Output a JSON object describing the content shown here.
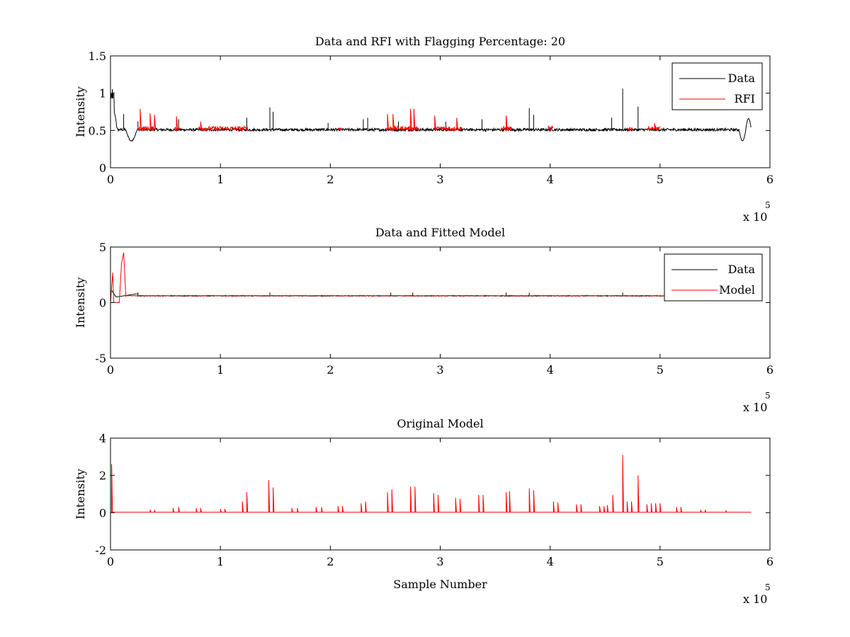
{
  "figure": {
    "xlabel": "Sample Number",
    "exponent_base": "x 10",
    "exponent_power": "5"
  },
  "colors": {
    "data": "#000000",
    "rfi": "#ff0000",
    "axes": "#000000"
  },
  "chart_data": [
    {
      "type": "line",
      "title": "Data and RFI with Flagging Percentage: 20",
      "ylabel": "Intensity",
      "xlabel": "",
      "xlim": [
        0,
        6
      ],
      "ylim": [
        0,
        1.5
      ],
      "xticks": [
        "0",
        "1",
        "2",
        "3",
        "4",
        "5",
        "6"
      ],
      "xtick_values": [
        0,
        1,
        2,
        3,
        4,
        5,
        6
      ],
      "yticks": [
        "0",
        "0.5",
        "1",
        "1.5"
      ],
      "ytick_values": [
        0,
        0.5,
        1,
        1.5
      ],
      "x_scale_note": "x 10^5",
      "legend_position": "top-right",
      "series": [
        {
          "name": "Data",
          "color": "#000000",
          "baseline": 0.51,
          "noise": 0.018,
          "features": [
            {
              "x": 0.01,
              "y": 1.08
            },
            {
              "x": 0.03,
              "y": 0.78
            },
            {
              "x": 0.06,
              "y": 0.5
            },
            {
              "x": 0.19,
              "y": 0.36
            },
            {
              "x": 0.25,
              "y": 0.65
            },
            {
              "x": 1.45,
              "y": 0.81
            },
            {
              "x": 4.66,
              "y": 1.06
            },
            {
              "x": 4.8,
              "y": 0.82
            },
            {
              "x": 5.75,
              "y": 0.36
            },
            {
              "x": 5.8,
              "y": 0.67
            },
            {
              "x": 5.83,
              "y": 0.52
            }
          ],
          "x_range": [
            0,
            5.83
          ]
        },
        {
          "name": "RFI",
          "color": "#ff0000",
          "segments": [
            [
              0.25,
              0.4
            ],
            [
              0.58,
              0.63
            ],
            [
              0.8,
              1.25
            ],
            [
              2.07,
              2.1
            ],
            [
              2.5,
              2.8
            ],
            [
              2.95,
              3.2
            ],
            [
              3.55,
              3.65
            ],
            [
              3.98,
              4.03
            ],
            [
              4.7,
              4.75
            ],
            [
              4.88,
              5.0
            ]
          ],
          "spikes": [
            {
              "x": 0.27,
              "y": 0.79
            },
            {
              "x": 0.36,
              "y": 0.73
            },
            {
              "x": 0.4,
              "y": 0.71
            },
            {
              "x": 0.6,
              "y": 0.69
            },
            {
              "x": 0.82,
              "y": 0.62
            },
            {
              "x": 2.52,
              "y": 0.72
            },
            {
              "x": 2.57,
              "y": 0.72
            },
            {
              "x": 2.73,
              "y": 0.79
            },
            {
              "x": 2.76,
              "y": 0.79
            },
            {
              "x": 2.95,
              "y": 0.7
            },
            {
              "x": 3.15,
              "y": 0.67
            },
            {
              "x": 3.6,
              "y": 0.7
            },
            {
              "x": 4.95,
              "y": 0.6
            }
          ]
        }
      ]
    },
    {
      "type": "line",
      "title": "Data and Fitted Model",
      "ylabel": "Intensity",
      "xlabel": "",
      "xlim": [
        0,
        6
      ],
      "ylim": [
        -5,
        5
      ],
      "xticks": [
        "0",
        "1",
        "2",
        "3",
        "4",
        "5",
        "6"
      ],
      "xtick_values": [
        0,
        1,
        2,
        3,
        4,
        5,
        6
      ],
      "yticks": [
        "-5",
        "0",
        "5"
      ],
      "ytick_values": [
        -5,
        0,
        5
      ],
      "x_scale_note": "x 10^5",
      "legend_position": "top-right",
      "series": [
        {
          "name": "Data",
          "color": "#000000",
          "baseline": 0.6,
          "features": [
            {
              "x": 0.01,
              "y": 1.1
            },
            {
              "x": 0.05,
              "y": 0.5
            },
            {
              "x": 0.25,
              "y": 0.8
            }
          ],
          "x_range": [
            0,
            5.83
          ]
        },
        {
          "name": "Model",
          "color": "#ff0000",
          "baseline": 0.62,
          "features": [
            {
              "x": 0.0,
              "y": 0.0
            },
            {
              "x": 0.02,
              "y": 2.7
            },
            {
              "x": 0.03,
              "y": 0.0
            },
            {
              "x": 0.08,
              "y": 0.0
            },
            {
              "x": 0.1,
              "y": 3.5
            },
            {
              "x": 0.12,
              "y": 4.5
            },
            {
              "x": 0.14,
              "y": 0.5
            }
          ],
          "x_range": [
            0,
            5.83
          ]
        }
      ]
    },
    {
      "type": "line",
      "title": "Original Model",
      "ylabel": "Intensity",
      "xlabel": "Sample Number",
      "xlim": [
        0,
        6
      ],
      "ylim": [
        -2,
        4
      ],
      "xticks": [
        "0",
        "1",
        "2",
        "3",
        "4",
        "5",
        "6"
      ],
      "xtick_values": [
        0,
        1,
        2,
        3,
        4,
        5,
        6
      ],
      "yticks": [
        "-2",
        "0",
        "2",
        "4"
      ],
      "ytick_values": [
        -2,
        0,
        2,
        4
      ],
      "x_scale_note": "x 10^5",
      "series": [
        {
          "name": "Model",
          "color": "#ff0000",
          "baseline": 0.02,
          "x_range": [
            0.01,
            5.83
          ],
          "spikes": [
            {
              "x": 0.01,
              "y": 2.6
            },
            {
              "x": 1.2,
              "y": 0.6
            },
            {
              "x": 1.24,
              "y": 1.1
            },
            {
              "x": 1.44,
              "y": 1.75
            },
            {
              "x": 1.48,
              "y": 1.35
            },
            {
              "x": 2.28,
              "y": 0.5
            },
            {
              "x": 2.32,
              "y": 0.6
            },
            {
              "x": 2.52,
              "y": 1.1
            },
            {
              "x": 2.56,
              "y": 1.25
            },
            {
              "x": 2.73,
              "y": 1.4
            },
            {
              "x": 2.77,
              "y": 1.4
            },
            {
              "x": 2.94,
              "y": 1.05
            },
            {
              "x": 2.98,
              "y": 0.95
            },
            {
              "x": 3.14,
              "y": 0.8
            },
            {
              "x": 3.18,
              "y": 0.75
            },
            {
              "x": 3.35,
              "y": 0.95
            },
            {
              "x": 3.39,
              "y": 0.95
            },
            {
              "x": 3.6,
              "y": 1.1
            },
            {
              "x": 3.63,
              "y": 1.15
            },
            {
              "x": 3.81,
              "y": 1.3
            },
            {
              "x": 3.85,
              "y": 1.2
            },
            {
              "x": 4.03,
              "y": 0.6
            },
            {
              "x": 4.07,
              "y": 0.55
            },
            {
              "x": 4.24,
              "y": 0.45
            },
            {
              "x": 4.28,
              "y": 0.45
            },
            {
              "x": 4.45,
              "y": 0.35
            },
            {
              "x": 4.49,
              "y": 0.35
            },
            {
              "x": 4.52,
              "y": 0.4
            },
            {
              "x": 4.57,
              "y": 0.95
            },
            {
              "x": 4.66,
              "y": 3.1
            },
            {
              "x": 4.7,
              "y": 0.6
            },
            {
              "x": 4.74,
              "y": 0.6
            },
            {
              "x": 4.8,
              "y": 2.0
            },
            {
              "x": 4.88,
              "y": 0.45
            },
            {
              "x": 4.92,
              "y": 0.5
            },
            {
              "x": 4.96,
              "y": 0.5
            },
            {
              "x": 5.0,
              "y": 0.5
            },
            {
              "x": 5.15,
              "y": 0.3
            },
            {
              "x": 5.19,
              "y": 0.3
            },
            {
              "x": 0.78,
              "y": 0.25
            },
            {
              "x": 0.82,
              "y": 0.25
            },
            {
              "x": 1.0,
              "y": 0.2
            },
            {
              "x": 1.04,
              "y": 0.2
            },
            {
              "x": 1.65,
              "y": 0.25
            },
            {
              "x": 1.7,
              "y": 0.25
            },
            {
              "x": 1.87,
              "y": 0.3
            },
            {
              "x": 1.92,
              "y": 0.3
            },
            {
              "x": 2.07,
              "y": 0.35
            },
            {
              "x": 2.11,
              "y": 0.35
            },
            {
              "x": 0.57,
              "y": 0.25
            },
            {
              "x": 0.62,
              "y": 0.3
            },
            {
              "x": 0.36,
              "y": 0.15
            },
            {
              "x": 0.4,
              "y": 0.15
            },
            {
              "x": 5.37,
              "y": 0.15
            },
            {
              "x": 5.41,
              "y": 0.15
            },
            {
              "x": 5.6,
              "y": 0.1
            }
          ]
        }
      ]
    }
  ]
}
